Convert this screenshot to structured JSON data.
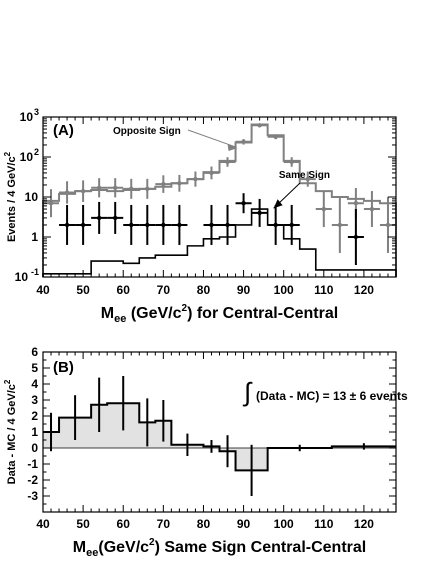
{
  "chart_data": [
    {
      "type": "histogram",
      "panel_label": "(A)",
      "ylabel": "Events / 4 GeV/c",
      "ylabel_sup": "2",
      "xlabel_main": "M",
      "xlabel_sub": "ee",
      "xlabel_rest": " (GeV/c",
      "xlabel_sup": "2",
      "xlabel_tail": ") for Central-Central",
      "xlim": [
        40,
        128
      ],
      "ylim": [
        0.1,
        1000
      ],
      "yscale": "log",
      "xticks": [
        40,
        50,
        60,
        70,
        80,
        90,
        100,
        110,
        120
      ],
      "yticks": [
        {
          "v": 0.1,
          "base": "10",
          "exp": "-1"
        },
        {
          "v": 1,
          "base": "1",
          "exp": ""
        },
        {
          "v": 10,
          "base": "10",
          "exp": ""
        },
        {
          "v": 100,
          "base": "10",
          "exp": "2"
        },
        {
          "v": 1000,
          "base": "10",
          "exp": "3"
        }
      ],
      "annotations": [
        {
          "text": "Opposite Sign",
          "color": "#808080",
          "arrow_to": [
            89,
            200
          ]
        },
        {
          "text": "Same Sign",
          "color": "#000000",
          "arrow_to": [
            96,
            3.5
          ]
        }
      ],
      "bin_edges": [
        40,
        44,
        48,
        52,
        56,
        60,
        64,
        68,
        72,
        76,
        80,
        84,
        88,
        92,
        96,
        100,
        104,
        108,
        112,
        116,
        120,
        124,
        128
      ],
      "series": [
        {
          "name": "Opposite Sign",
          "color": "#808080",
          "mc_hist": [
            8,
            12,
            14,
            15,
            14,
            15,
            16,
            18,
            22,
            28,
            42,
            80,
            230,
            650,
            350,
            80,
            22,
            14,
            10,
            9,
            8,
            7
          ],
          "points": {
            "x": [
              42,
              46,
              50,
              54,
              58,
              62,
              66,
              70,
              74,
              78,
              82,
              86,
              90,
              94,
              98,
              102,
              106,
              110,
              114,
              118,
              122,
              126
            ],
            "y": [
              7,
              13,
              14,
              17,
              17,
              16,
              16,
              21,
              22,
              28,
              40,
              75,
              240,
              620,
              320,
              75,
              28,
              5,
              2,
              7,
              5,
              2
            ],
            "yerr": [
              0.35,
              0.28,
              0.27,
              0.24,
              0.24,
              0.25,
              0.25,
              0.22,
              0.21,
              0.19,
              0.16,
              0.12,
              0.07,
              0.04,
              0.06,
              0.12,
              0.19,
              0.45,
              0.7,
              0.38,
              0.45,
              0.7
            ]
          }
        },
        {
          "name": "Same Sign",
          "color": "#000000",
          "mc_hist": [
            0.12,
            0.12,
            0.12,
            0.25,
            0.25,
            0.22,
            0.3,
            0.35,
            0.35,
            0.6,
            0.9,
            1.0,
            2.0,
            5.0,
            2.0,
            0.9,
            0.5,
            0.15,
            0.15,
            0.15,
            0.15,
            0.15
          ],
          "points": {
            "x": [
              42,
              46,
              50,
              54,
              58,
              62,
              66,
              70,
              74,
              78,
              82,
              86,
              90,
              94,
              98,
              102,
              106,
              110,
              114,
              118,
              122,
              126
            ],
            "y": [
              null,
              2,
              2,
              3,
              3,
              2,
              2,
              2,
              2,
              null,
              2,
              2,
              7,
              4,
              2,
              2,
              null,
              null,
              null,
              1,
              null,
              null
            ],
            "yerr": [
              0,
              0.5,
              0.5,
              0.4,
              0.4,
              0.5,
              0.5,
              0.5,
              0.5,
              0,
              0.5,
              0.5,
              0.25,
              0.35,
              0.5,
              0.5,
              0,
              0,
              0,
              0.7,
              0,
              0
            ]
          }
        }
      ]
    },
    {
      "type": "histogram",
      "panel_label": "(B)",
      "ylabel": "Data - MC / 4 GeV/c",
      "ylabel_sup": "2",
      "xlabel_main": "M",
      "xlabel_sub": "ee",
      "xlabel_rest": "(GeV/c",
      "xlabel_sup": "2",
      "xlabel_tail": ") Same Sign Central-Central",
      "xlim": [
        40,
        128
      ],
      "ylim": [
        -4,
        6
      ],
      "yscale": "linear",
      "xticks": [
        40,
        50,
        60,
        70,
        80,
        90,
        100,
        110,
        120
      ],
      "yticks": [
        -3,
        -2,
        -1,
        0,
        1,
        2,
        3,
        4,
        5,
        6
      ],
      "annotation": "(Data - MC) = 13 ± 6 events",
      "bin_edges": [
        40,
        44,
        52,
        56,
        64,
        68,
        72,
        80,
        84,
        88,
        96,
        112,
        128
      ],
      "values": [
        1.0,
        1.9,
        2.7,
        2.8,
        1.6,
        1.7,
        0.2,
        0.1,
        -0.2,
        -1.4,
        0.0,
        0.1
      ],
      "errors": [
        1.2,
        1.4,
        1.7,
        1.7,
        1.5,
        1.3,
        0.7,
        0.4,
        1.0,
        1.6,
        0.2,
        0.2
      ]
    }
  ]
}
